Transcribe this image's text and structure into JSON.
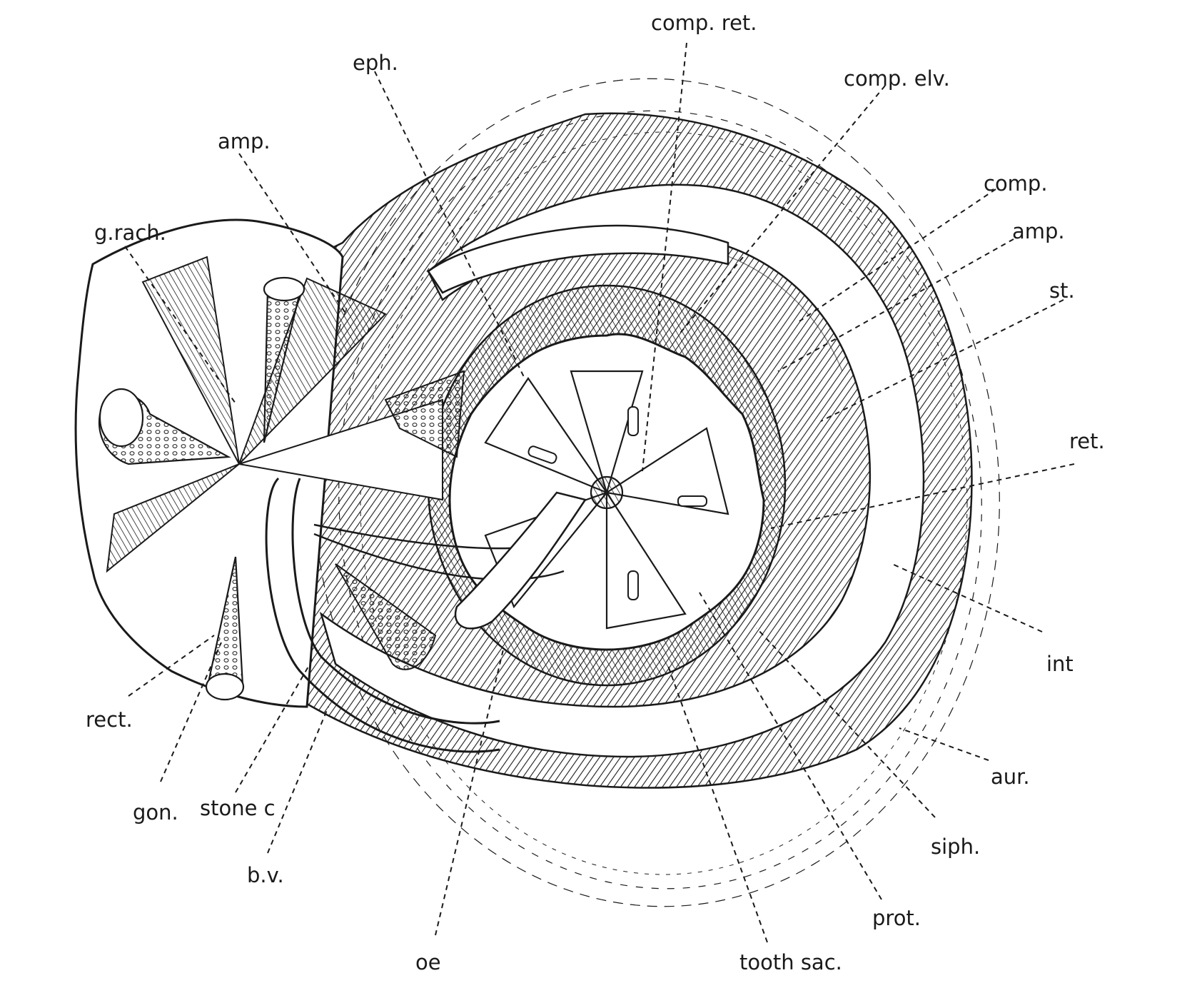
{
  "figure": {
    "labels": {
      "comp_ret": "comp. ret.",
      "eph": "eph.",
      "comp_elv": "comp. elv.",
      "amp_left": "amp.",
      "comp": "comp.",
      "amp_right": "amp.",
      "g_rach": "g.rach.",
      "st": "st.",
      "ret": "ret.",
      "int": "int",
      "rect": "rect.",
      "aur": "aur.",
      "gon": "gon.",
      "stone_c": "stone c",
      "siph": "siph.",
      "b_v": "b.v.",
      "prot": "prot.",
      "oe": "oe",
      "tooth_sac": "tooth sac."
    }
  }
}
